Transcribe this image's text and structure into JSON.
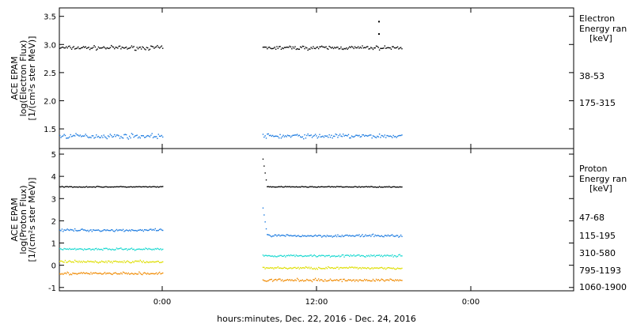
{
  "chart_data": [
    {
      "type": "scatter",
      "panel": "electron",
      "ylabel_lines": [
        "ACE EPAM",
        "log(Electron Flux)",
        "[1/(cm²s ster MeV)]"
      ],
      "ylim": [
        1.15,
        3.65
      ],
      "yticks": [
        "1.5",
        "2.0",
        "2.5",
        "3.0",
        "3.5"
      ],
      "legend_title": [
        "Electron",
        "Energy ran",
        "[keV]"
      ],
      "grid": false,
      "series": [
        {
          "name": "38-53",
          "color": "#000000",
          "level": 2.95,
          "noise": 0.05,
          "segments": [
            [
              0.0,
              0.4
            ],
            [
              0.79,
              1.33
            ]
          ],
          "spike": {
            "x": 1.24,
            "y": 3.42
          }
        },
        {
          "name": "175-315",
          "color": "#1a7ae0",
          "level": 1.38,
          "noise": 0.06,
          "segments": [
            [
              0.0,
              0.4
            ],
            [
              0.79,
              1.33
            ]
          ]
        }
      ]
    },
    {
      "type": "scatter",
      "panel": "proton",
      "ylabel_lines": [
        "ACE EPAM",
        "log(Proton Flux)",
        "[1/(cm²s ster MeV)]"
      ],
      "ylim": [
        -1.15,
        5.25
      ],
      "yticks": [
        "-1",
        "0",
        "1",
        "2",
        "3",
        "4",
        "5"
      ],
      "legend_title": [
        "Proton",
        "Energy ran",
        "[keV]"
      ],
      "grid": false,
      "series": [
        {
          "name": "47-68",
          "color": "#000000",
          "level": 3.55,
          "noise": 0.03,
          "segments": [
            [
              0.0,
              0.4
            ],
            [
              0.79,
              1.33
            ]
          ],
          "start_spike": 4.8
        },
        {
          "name": "115-195",
          "color": "#1a7ae0",
          "level": 1.6,
          "noise": 0.08,
          "segments": [
            [
              0.0,
              0.4
            ],
            [
              0.79,
              1.33
            ]
          ],
          "start_spike": 2.6,
          "drift_after": 1.35
        },
        {
          "name": "310-580",
          "color": "#18d8d0",
          "level": 0.75,
          "noise": 0.07,
          "segments": [
            [
              0.0,
              0.4
            ],
            [
              0.79,
              1.33
            ]
          ],
          "drift_after": 0.45
        },
        {
          "name": "795-1193",
          "color": "#dede00",
          "level": 0.18,
          "noise": 0.08,
          "segments": [
            [
              0.0,
              0.4
            ],
            [
              0.79,
              1.33
            ]
          ],
          "drift_after": -0.1
        },
        {
          "name": "1060-1900",
          "color": "#f08a00",
          "level": -0.35,
          "noise": 0.09,
          "segments": [
            [
              0.0,
              0.4
            ],
            [
              0.79,
              1.33
            ]
          ],
          "drift_after": -0.65
        }
      ]
    }
  ],
  "x_axis": {
    "xlim": [
      0.0,
      2.0
    ],
    "ticks": [
      {
        "x": 0.4,
        "label": "0:00"
      },
      {
        "x": 1.0,
        "label": "12:00"
      },
      {
        "x": 1.6,
        "label": "0:00"
      }
    ],
    "label": "hours:minutes, Dec. 22, 2016 - Dec. 24, 2016"
  }
}
